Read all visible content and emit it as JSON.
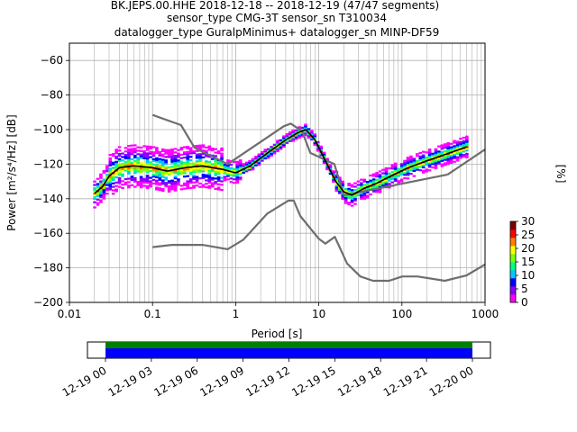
{
  "chart_data": [
    {
      "type": "heatmap",
      "title_lines": [
        "BK.JEPS.00.HHE   2018-12-18 -- 2018-12-19  (47/47 segments)",
        "sensor_type CMG-3T sensor_sn T310034",
        "datalogger_type GuralpMinimus+ datalogger_sn MINP-DF59"
      ],
      "xlabel": "Period [s]",
      "ylabel": "Power [m²/s⁴/Hz] [dB]",
      "x_scale": "log",
      "xlim": [
        0.01,
        1000
      ],
      "ylim": [
        -200,
        -50
      ],
      "x_ticks": [
        0.01,
        0.1,
        1,
        10,
        100,
        1000
      ],
      "x_tick_labels": [
        "0.01",
        "0.1",
        "1",
        "10",
        "100",
        "1000"
      ],
      "y_ticks": [
        -60,
        -80,
        -100,
        -120,
        -140,
        -160,
        -180,
        -200
      ],
      "y_tick_labels": [
        "−60",
        "−80",
        "−100",
        "−120",
        "−140",
        "−160",
        "−180",
        "−200"
      ],
      "grid": true,
      "colorbar": {
        "label": "[%]",
        "range": [
          0,
          30
        ],
        "ticks": [
          0,
          5,
          10,
          15,
          20,
          25,
          30
        ],
        "tick_labels": [
          "0",
          "5",
          "10",
          "15",
          "20",
          "25",
          "30"
        ],
        "colors": [
          "#ff00ff",
          "#8a00ff",
          "#0000ff",
          "#00c8ff",
          "#00ff80",
          "#80ff00",
          "#ffff00",
          "#ff8000",
          "#ff0000",
          "#800000"
        ]
      },
      "series": [
        {
          "role": "high-noise-model",
          "color": "#6e6e6e",
          "x": [
            0.1,
            0.22,
            0.32,
            0.8,
            3.8,
            4.6,
            6.3,
            7.9,
            15.4,
            20,
            354.8
          ],
          "y": [
            -91.5,
            -97.4,
            -110.5,
            -120,
            -98,
            -96.5,
            -101,
            -113.5,
            -120,
            -138,
            -126
          ]
        },
        {
          "role": "high-noise-model-tail",
          "color": "#6e6e6e",
          "x": [
            354.8,
            1000
          ],
          "y": [
            -126,
            -111.5
          ]
        },
        {
          "role": "low-noise-model",
          "color": "#6e6e6e",
          "x": [
            0.1,
            0.17,
            0.4,
            0.8,
            1.24,
            2.4,
            4.3,
            5.0,
            6.0,
            10.0,
            12.0,
            15.6,
            21.9,
            31.6,
            45,
            70,
            101,
            154,
            328,
            600,
            1000
          ],
          "y": [
            -168,
            -166.7,
            -166.7,
            -169.2,
            -163.7,
            -148.6,
            -141.1,
            -141.1,
            -150,
            -163.2,
            -166,
            -162.1,
            -177.5,
            -185,
            -187.5,
            -187.5,
            -185,
            -185,
            -187.5,
            -184.4,
            -178
          ]
        },
        {
          "role": "mean",
          "color": "#000000",
          "x": [
            0.02,
            0.025,
            0.03,
            0.04,
            0.06,
            0.1,
            0.15,
            0.25,
            0.4,
            0.7,
            1.0,
            1.5,
            2.5,
            4.0,
            5.5,
            7.0,
            9.0,
            12,
            16,
            20,
            25,
            35,
            50,
            80,
            120,
            200,
            350,
            600
          ],
          "y": [
            -137,
            -133,
            -127,
            -122,
            -121,
            -122,
            -124,
            -122,
            -121,
            -123,
            -125,
            -121,
            -113,
            -106,
            -102,
            -100,
            -106,
            -118,
            -130,
            -136,
            -138,
            -134,
            -131,
            -126,
            -122,
            -118,
            -114,
            -110
          ]
        }
      ]
    },
    {
      "type": "timeline",
      "x_tick_labels": [
        "12-19 00",
        "12-19 03",
        "12-19 06",
        "12-19 09",
        "12-19 12",
        "12-19 15",
        "12-19 18",
        "12-19 21",
        "12-20 00"
      ],
      "data_coverage_start": "12-19 00",
      "data_coverage_end": "12-20 00",
      "bar_colors": [
        "#008000",
        "#0000ff"
      ]
    }
  ]
}
